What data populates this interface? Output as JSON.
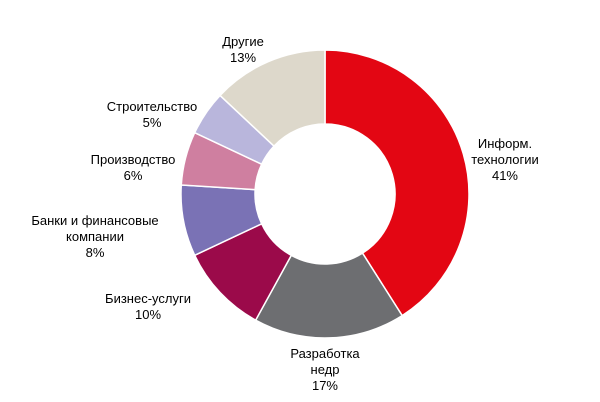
{
  "chart_data": {
    "type": "donut",
    "categories": [
      "Информ.\nтехнологии",
      "Разработка\nнедр",
      "Бизнес-услуги",
      "Банки и финансовые\nкомпании",
      "Производство",
      "Строительство",
      "Другие"
    ],
    "values": [
      41,
      17,
      10,
      8,
      6,
      5,
      13
    ],
    "value_labels": [
      "41%",
      "17%",
      "10%",
      "8%",
      "6%",
      "5%",
      "13%"
    ],
    "colors": [
      "#e30613",
      "#6d6e71",
      "#9b0a4a",
      "#7a72b5",
      "#cf7fa0",
      "#b9b6dc",
      "#ddd8cb"
    ]
  }
}
